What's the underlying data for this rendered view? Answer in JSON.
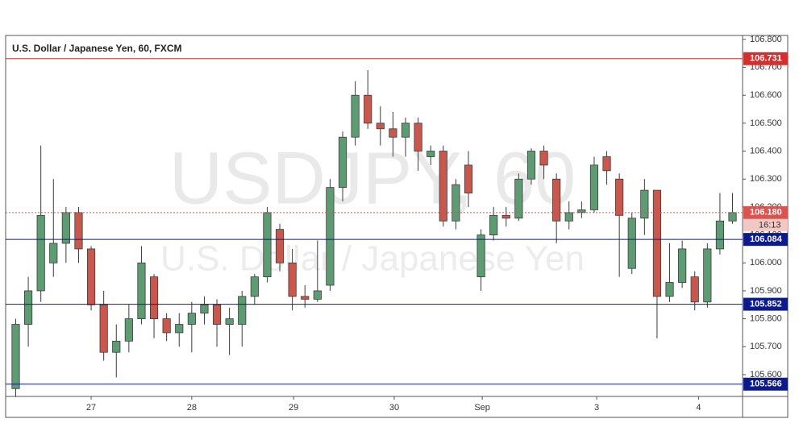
{
  "chart_data": {
    "type": "candlestick",
    "title": "U.S. Dollar / Japanese Yen, 60, FXCM",
    "watermark": "USDJPY, 60",
    "watermark_subtitle": "U.S. Dollar / Japanese Yen",
    "x": [
      -6,
      -5,
      -4,
      -3,
      -2,
      -1,
      0,
      1,
      2,
      3,
      4,
      5,
      6,
      7,
      8,
      9,
      10,
      11,
      12,
      13,
      14,
      15,
      16,
      17,
      18,
      19,
      20,
      21,
      22,
      23,
      24,
      25,
      26,
      27,
      28,
      29,
      30,
      31,
      32,
      33,
      34,
      35,
      36,
      37,
      38,
      39,
      40,
      41,
      42,
      43,
      44,
      45,
      46,
      47,
      48,
      49,
      50,
      51
    ],
    "open": [
      105.55,
      105.78,
      105.9,
      106.0,
      106.07,
      106.18,
      106.05,
      105.85,
      105.68,
      105.72,
      105.8,
      105.95,
      105.8,
      105.75,
      105.78,
      105.82,
      105.85,
      105.78,
      105.78,
      105.88,
      105.95,
      106.12,
      106.0,
      105.88,
      105.87,
      105.92,
      106.27,
      106.45,
      106.6,
      106.5,
      106.48,
      106.45,
      106.5,
      106.38,
      106.4,
      106.15,
      106.35,
      105.95,
      106.1,
      106.17,
      106.16,
      106.3,
      106.4,
      106.3,
      106.15,
      106.18,
      106.19,
      106.38,
      106.3,
      105.98,
      106.16,
      106.26,
      105.88,
      105.93,
      105.95,
      105.86,
      106.05,
      106.15
    ],
    "high": [
      105.8,
      105.95,
      106.42,
      106.3,
      106.2,
      106.2,
      106.06,
      105.9,
      105.78,
      105.85,
      106.06,
      105.96,
      105.82,
      105.82,
      105.86,
      105.88,
      105.87,
      105.84,
      105.9,
      105.96,
      106.2,
      106.14,
      106.05,
      105.92,
      106.08,
      106.3,
      106.47,
      106.65,
      106.69,
      106.56,
      106.54,
      106.52,
      106.52,
      106.42,
      106.42,
      106.3,
      106.4,
      106.12,
      106.2,
      106.2,
      106.32,
      106.41,
      106.42,
      106.32,
      106.22,
      106.22,
      106.38,
      106.4,
      106.32,
      106.18,
      106.3,
      106.26,
      106.07,
      106.08,
      105.97,
      106.07,
      106.25,
      106.25
    ],
    "low": [
      105.52,
      105.7,
      105.86,
      105.95,
      106.0,
      106.0,
      105.83,
      105.65,
      105.59,
      105.68,
      105.78,
      105.73,
      105.72,
      105.7,
      105.68,
      105.78,
      105.7,
      105.67,
      105.7,
      105.85,
      105.93,
      105.97,
      105.83,
      105.84,
      105.86,
      105.9,
      106.22,
      106.42,
      106.48,
      106.42,
      106.38,
      106.38,
      106.33,
      106.35,
      106.13,
      106.12,
      106.2,
      105.9,
      106.08,
      106.13,
      106.15,
      106.28,
      106.3,
      106.07,
      106.12,
      106.16,
      106.18,
      106.28,
      105.95,
      105.96,
      106.1,
      105.73,
      105.86,
      105.91,
      105.83,
      105.84,
      106.03,
      106.14
    ],
    "close": [
      105.78,
      105.9,
      106.17,
      106.07,
      106.18,
      106.05,
      105.85,
      105.68,
      105.72,
      105.8,
      106.0,
      105.8,
      105.75,
      105.78,
      105.82,
      105.85,
      105.78,
      105.8,
      105.88,
      105.95,
      106.18,
      106.0,
      105.88,
      105.87,
      105.9,
      106.27,
      106.45,
      106.6,
      106.5,
      106.48,
      106.45,
      106.5,
      106.4,
      106.4,
      106.15,
      106.28,
      106.25,
      106.1,
      106.17,
      106.16,
      106.3,
      106.4,
      106.35,
      106.15,
      106.18,
      106.19,
      106.35,
      106.33,
      106.17,
      106.16,
      106.26,
      105.88,
      105.93,
      106.05,
      105.86,
      106.05,
      106.15,
      106.18
    ],
    "up_color": "#5d9b73",
    "down_color": "#c8574d",
    "xlim": [
      -6.8,
      51.8
    ],
    "xticks": [
      {
        "value": 0,
        "label": "27"
      },
      {
        "value": 8,
        "label": "28"
      },
      {
        "value": 16.1,
        "label": "29"
      },
      {
        "value": 24.1,
        "label": "30"
      },
      {
        "value": 31.1,
        "label": "Sep"
      },
      {
        "value": 40.2,
        "label": "3"
      },
      {
        "value": 48.3,
        "label": "4"
      }
    ],
    "ylim": [
      105.522,
      106.814
    ],
    "yticks": [
      {
        "value": 105.6,
        "label": "105.600"
      },
      {
        "value": 105.7,
        "label": "105.700"
      },
      {
        "value": 105.8,
        "label": "105.800"
      },
      {
        "value": 105.9,
        "label": "105.900"
      },
      {
        "value": 106.0,
        "label": "106.000"
      },
      {
        "value": 106.1,
        "label": "106.100"
      },
      {
        "value": 106.2,
        "label": "106.200"
      },
      {
        "value": 106.3,
        "label": "106.300"
      },
      {
        "value": 106.4,
        "label": "106.400"
      },
      {
        "value": 106.5,
        "label": "106.500"
      },
      {
        "value": 106.6,
        "label": "106.600"
      },
      {
        "value": 106.7,
        "label": "106.700"
      },
      {
        "value": 106.8,
        "label": "106.800"
      }
    ],
    "grid": false,
    "levels": [
      {
        "value": 106.731,
        "label": "106.731",
        "color": "#d32f2f",
        "style": "solid"
      },
      {
        "value": 106.18,
        "label": "106.180",
        "color": "#d9534f",
        "style": "dotted"
      },
      {
        "value": 106.084,
        "label": "106.084",
        "color": "#0d1a8a",
        "style": "solid"
      },
      {
        "value": 105.852,
        "label": "105.852",
        "color": "#0d1a8a",
        "style": "solid"
      },
      {
        "value": 105.566,
        "label": "105.566",
        "color": "#0d1a8a",
        "style": "solid"
      }
    ],
    "countdown": "16:13"
  }
}
